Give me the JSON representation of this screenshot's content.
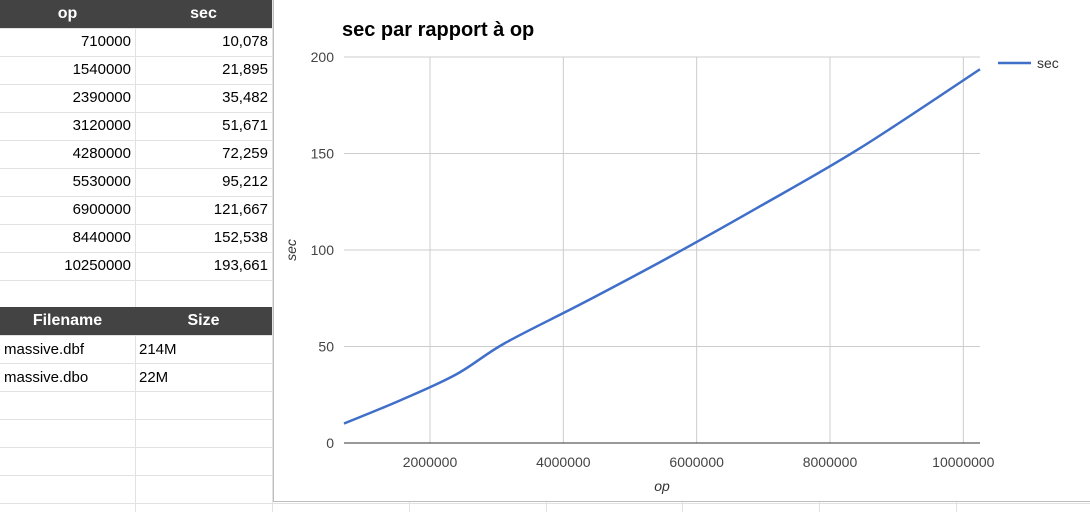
{
  "table1": {
    "headers": [
      "op",
      "sec"
    ],
    "rows": [
      [
        "710000",
        "10,078"
      ],
      [
        "1540000",
        "21,895"
      ],
      [
        "2390000",
        "35,482"
      ],
      [
        "3120000",
        "51,671"
      ],
      [
        "4280000",
        "72,259"
      ],
      [
        "5530000",
        "95,212"
      ],
      [
        "6900000",
        "121,667"
      ],
      [
        "8440000",
        "152,538"
      ],
      [
        "10250000",
        "193,661"
      ]
    ]
  },
  "table2": {
    "headers": [
      "Filename",
      "Size"
    ],
    "rows": [
      [
        "massive.dbf",
        "214M"
      ],
      [
        "massive.dbo",
        "22M"
      ]
    ]
  },
  "colors": {
    "header_bg": "#434343",
    "series": "#3f6fc9",
    "grid": "#cccccc"
  },
  "chart_data": {
    "type": "line",
    "title": "sec par rapport à op",
    "xlabel": "op",
    "ylabel": "sec",
    "xlim": [
      710000,
      10250000
    ],
    "ylim": [
      0,
      200
    ],
    "xticks": [
      2000000,
      4000000,
      6000000,
      8000000,
      10000000
    ],
    "xtick_labels": [
      "2000000",
      "4000000",
      "6000000",
      "8000000",
      "10000000"
    ],
    "yticks": [
      0,
      50,
      100,
      150,
      200
    ],
    "ytick_labels": [
      "0",
      "50",
      "100",
      "150",
      "200"
    ],
    "grid": true,
    "legend_position": "right",
    "series": [
      {
        "name": "sec",
        "x": [
          710000,
          1540000,
          2390000,
          3120000,
          4280000,
          5530000,
          6900000,
          8440000,
          10250000
        ],
        "y": [
          10.078,
          21.895,
          35.482,
          51.671,
          72.259,
          95.212,
          121.667,
          152.538,
          193.661
        ]
      }
    ]
  }
}
